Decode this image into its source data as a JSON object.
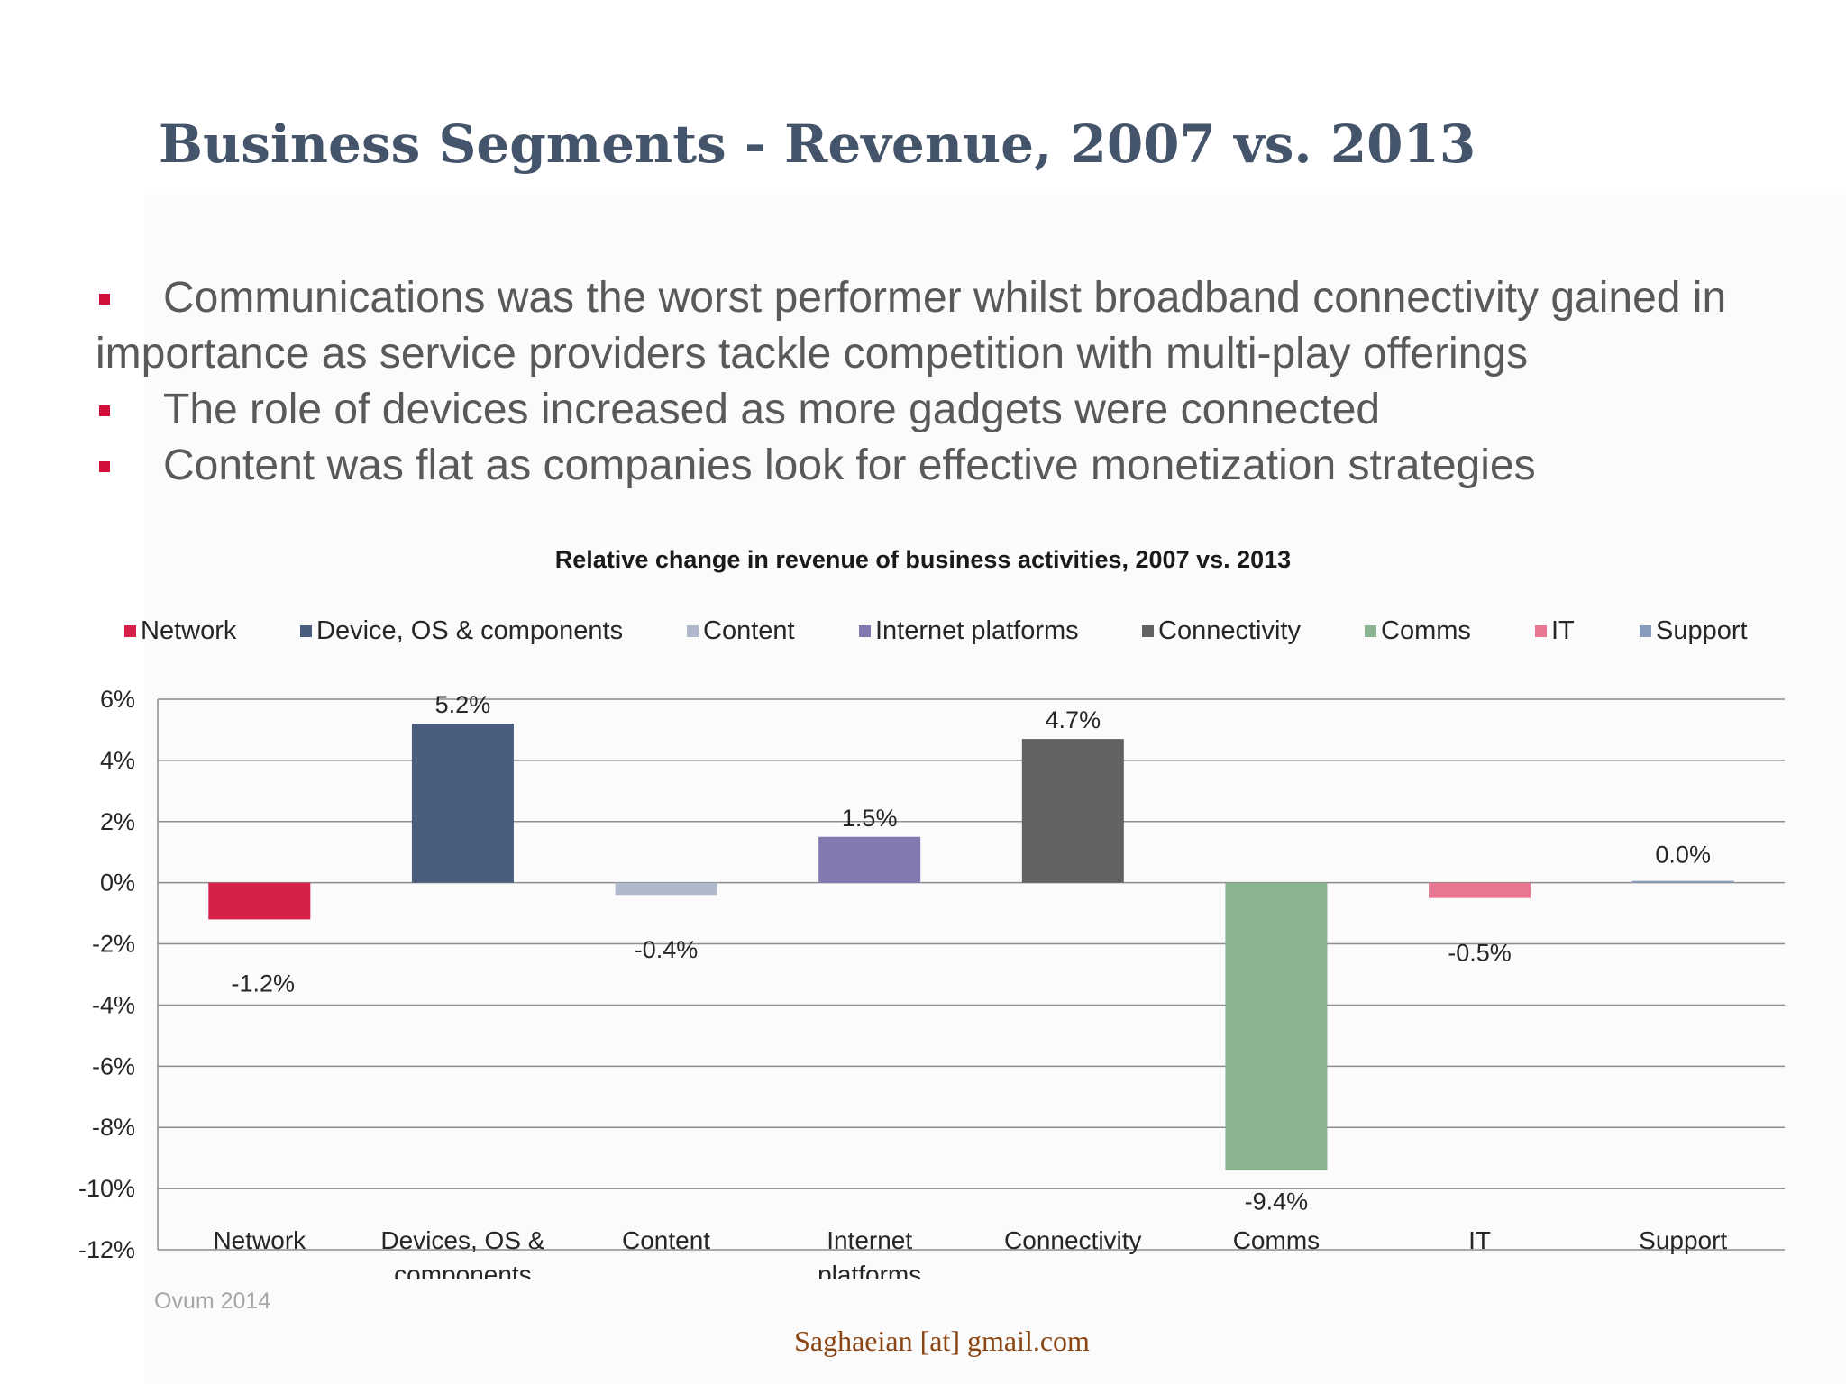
{
  "slide": {
    "title": "Business Segments - Revenue, 2007 vs. 2013",
    "bullets": [
      "Communications was the worst performer whilst broadband connectivity gained in importance as service providers tackle competition with multi-play offerings",
      "The role of devices increased as more gadgets were connected",
      "Content was flat as companies look for effective monetization strategies"
    ],
    "source": "Ovum 2014",
    "footer": "Saghaeian [at] gmail.com"
  },
  "chart_data": {
    "type": "bar",
    "title": "Relative change in revenue of business activities, 2007 vs. 2013",
    "categories": [
      "Network",
      "Devices, OS & components",
      "Content",
      "Internet platforms",
      "Connectivity",
      "Comms",
      "IT",
      "Support"
    ],
    "category_lines": [
      [
        "Network"
      ],
      [
        "Devices, OS &",
        "components"
      ],
      [
        "Content"
      ],
      [
        "Internet",
        "platforms"
      ],
      [
        "Connectivity"
      ],
      [
        "Comms"
      ],
      [
        "IT"
      ],
      [
        "Support"
      ]
    ],
    "legend": [
      "Network",
      "Device, OS & components",
      "Content",
      "Internet platforms",
      "Connectivity",
      "Comms",
      "IT",
      "Support"
    ],
    "values": [
      -1.2,
      5.2,
      -0.4,
      1.5,
      4.7,
      -9.4,
      -0.5,
      0.0
    ],
    "value_labels": [
      "-1.2%",
      "5.2%",
      "-0.4%",
      "1.5%",
      "4.7%",
      "-9.4%",
      "-0.5%",
      "0.0%"
    ],
    "colors": [
      "#d6204a",
      "#4a5d7e",
      "#b0b8cc",
      "#8279b0",
      "#626262",
      "#8ab392",
      "#e87690",
      "#8a9cbc"
    ],
    "ylim": [
      -12,
      6
    ],
    "yticks": [
      "6%",
      "4%",
      "2%",
      "0%",
      "-2%",
      "-4%",
      "-6%",
      "-8%",
      "-10%",
      "-12%"
    ],
    "grid": true,
    "legend_position": "top"
  }
}
